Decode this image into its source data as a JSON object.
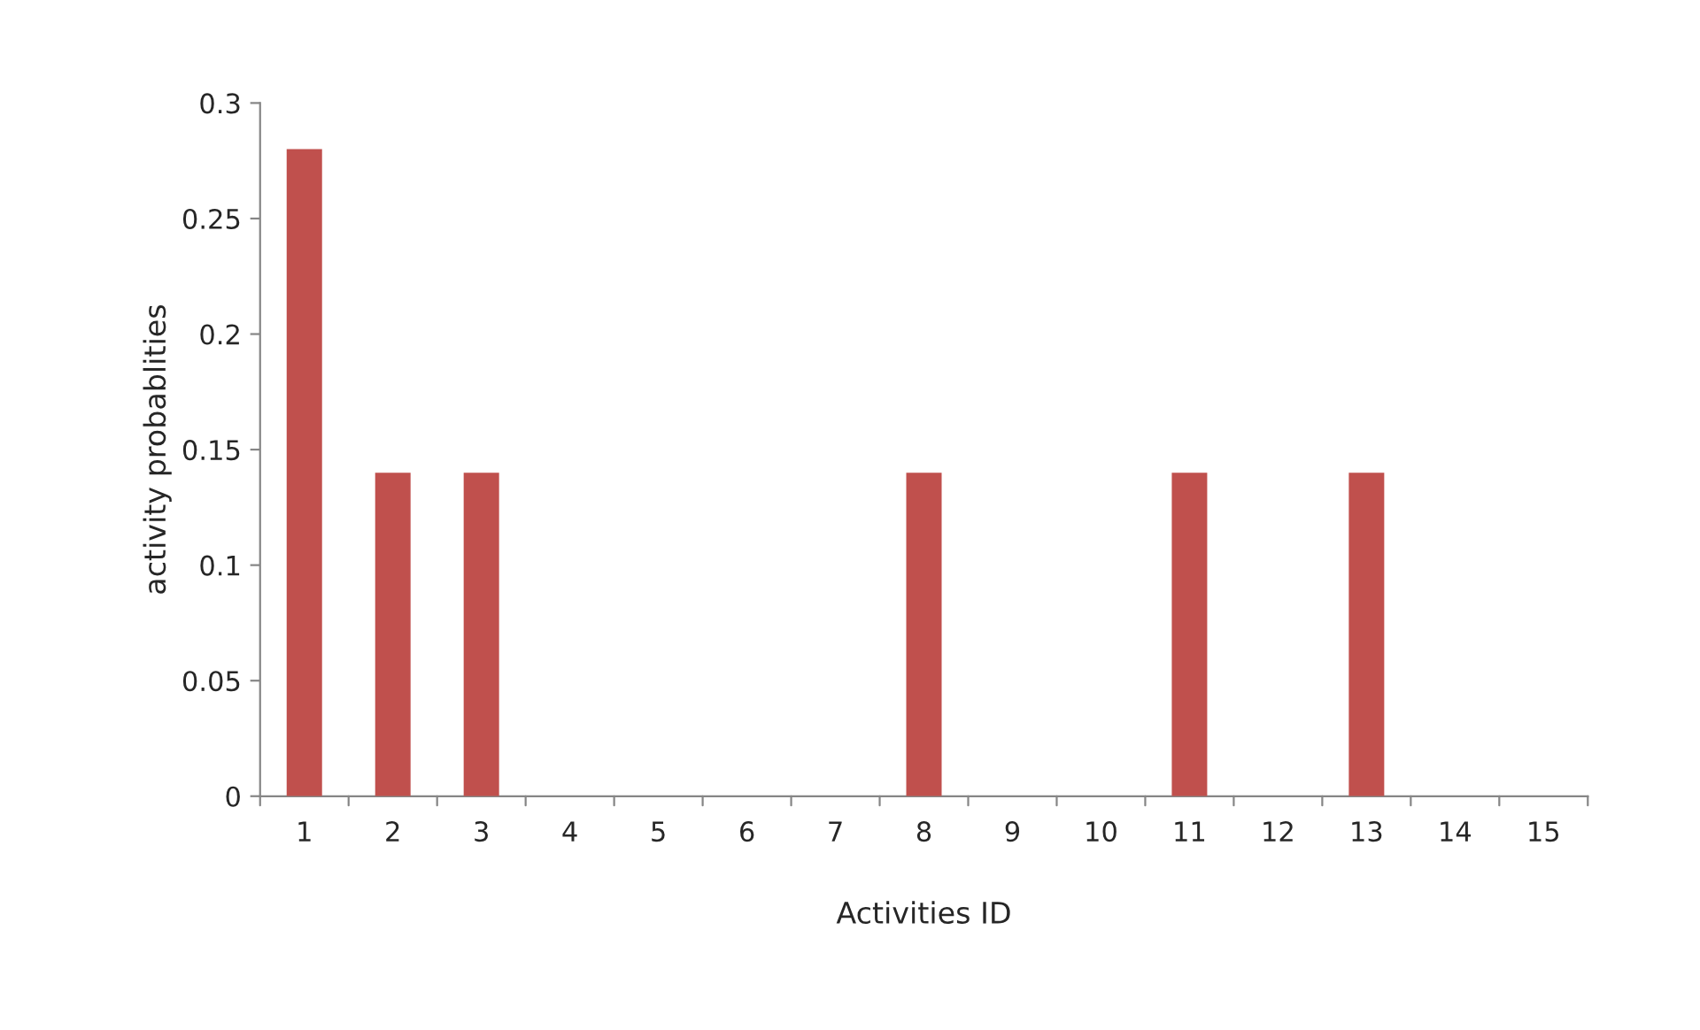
{
  "chart_data": {
    "type": "bar",
    "xlabel": "Activities ID",
    "ylabel": "activity probablities",
    "categories": [
      "1",
      "2",
      "3",
      "4",
      "5",
      "6",
      "7",
      "8",
      "9",
      "10",
      "11",
      "12",
      "13",
      "14",
      "15"
    ],
    "values": [
      0.28,
      0.14,
      0.14,
      0,
      0,
      0,
      0,
      0.14,
      0,
      0,
      0.14,
      0,
      0.14,
      0,
      0
    ],
    "color": "#c0504d",
    "ylim": [
      0,
      0.3
    ],
    "yticks": [
      0,
      0.05,
      0.1,
      0.15,
      0.2,
      0.25,
      0.3
    ],
    "grid": false,
    "legend": false
  }
}
